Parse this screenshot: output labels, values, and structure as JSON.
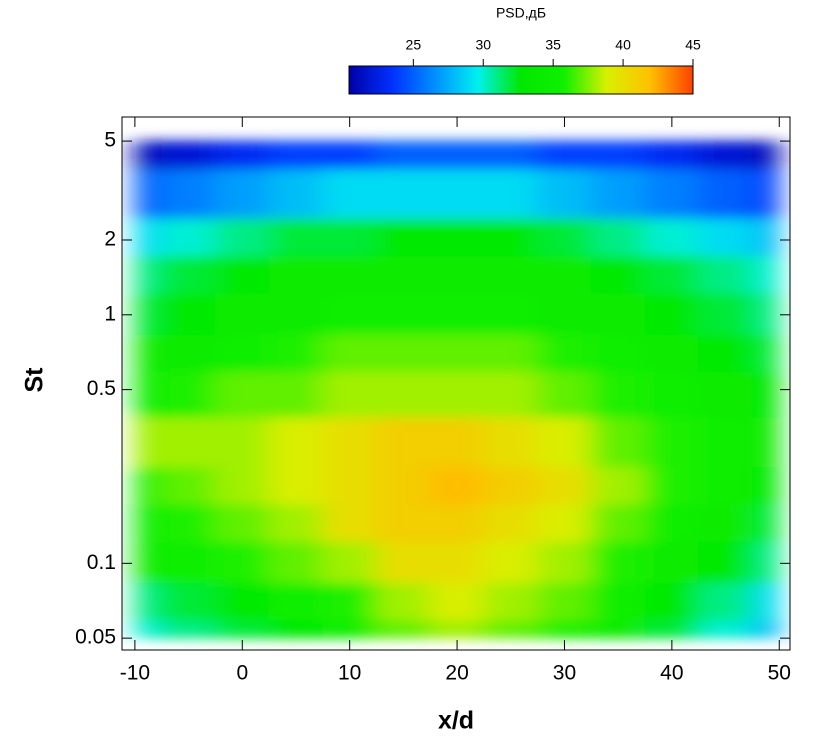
{
  "chart_data": {
    "type": "heatmap",
    "xlabel": "x/d",
    "ylabel": "St",
    "x": [
      -10,
      -5,
      0,
      5,
      10,
      15,
      20,
      25,
      30,
      35,
      40,
      45,
      50
    ],
    "y": [
      0.05,
      0.07,
      0.1,
      0.15,
      0.2,
      0.3,
      0.5,
      0.7,
      1,
      1.5,
      2,
      3,
      5
    ],
    "z": [
      [
        30,
        31,
        32,
        33,
        35,
        37,
        38,
        37,
        36,
        34,
        32,
        30,
        28
      ],
      [
        31,
        32,
        33,
        35,
        36,
        38,
        39,
        38,
        37,
        35,
        33,
        31,
        29
      ],
      [
        34,
        35,
        36,
        37,
        38,
        40,
        40,
        39,
        38,
        36,
        34,
        33,
        31
      ],
      [
        35,
        36,
        37,
        38,
        40,
        41,
        41,
        40,
        39,
        37,
        35,
        34,
        32
      ],
      [
        36,
        37,
        38,
        39,
        40,
        41,
        42,
        41,
        40,
        38,
        36,
        35,
        33
      ],
      [
        38,
        38,
        38,
        39,
        40,
        41,
        41,
        40,
        39,
        37,
        36,
        35,
        34
      ],
      [
        35,
        36,
        37,
        37,
        38,
        38,
        38,
        38,
        37,
        36,
        35,
        34,
        33
      ],
      [
        34,
        34,
        35,
        36,
        37,
        37,
        37,
        37,
        36,
        35,
        34,
        33,
        32
      ],
      [
        32,
        33,
        34,
        34,
        35,
        35,
        35,
        35,
        34,
        34,
        33,
        32,
        31
      ],
      [
        31,
        32,
        33,
        34,
        34,
        34,
        34,
        34,
        34,
        33,
        32,
        31,
        30
      ],
      [
        29,
        30,
        31,
        32,
        32,
        33,
        33,
        33,
        32,
        31,
        30,
        29,
        28
      ],
      [
        25,
        26,
        27,
        28,
        29,
        29,
        29,
        29,
        28,
        27,
        26,
        25,
        24
      ],
      [
        21,
        22,
        23,
        24,
        24,
        25,
        25,
        25,
        24,
        24,
        23,
        22,
        21
      ]
    ],
    "xlim": [
      -11.2,
      51
    ],
    "xticks": [
      -10,
      0,
      10,
      20,
      30,
      40,
      50
    ],
    "ylim": [
      0.0448,
      6.25
    ],
    "yticks": [
      0.05,
      0.1,
      0.5,
      1,
      2,
      5
    ],
    "ylog": true,
    "colorbar": {
      "label": "PSD,дБ",
      "zlim": [
        20.4,
        45
      ],
      "ticks": [
        25,
        30,
        35,
        40,
        45
      ],
      "colors": [
        "#0000a8",
        "#0030ff",
        "#0090ff",
        "#00f0f0",
        "#00e800",
        "#10f000",
        "#d8f000",
        "#ffc000",
        "#ff4000"
      ]
    }
  }
}
